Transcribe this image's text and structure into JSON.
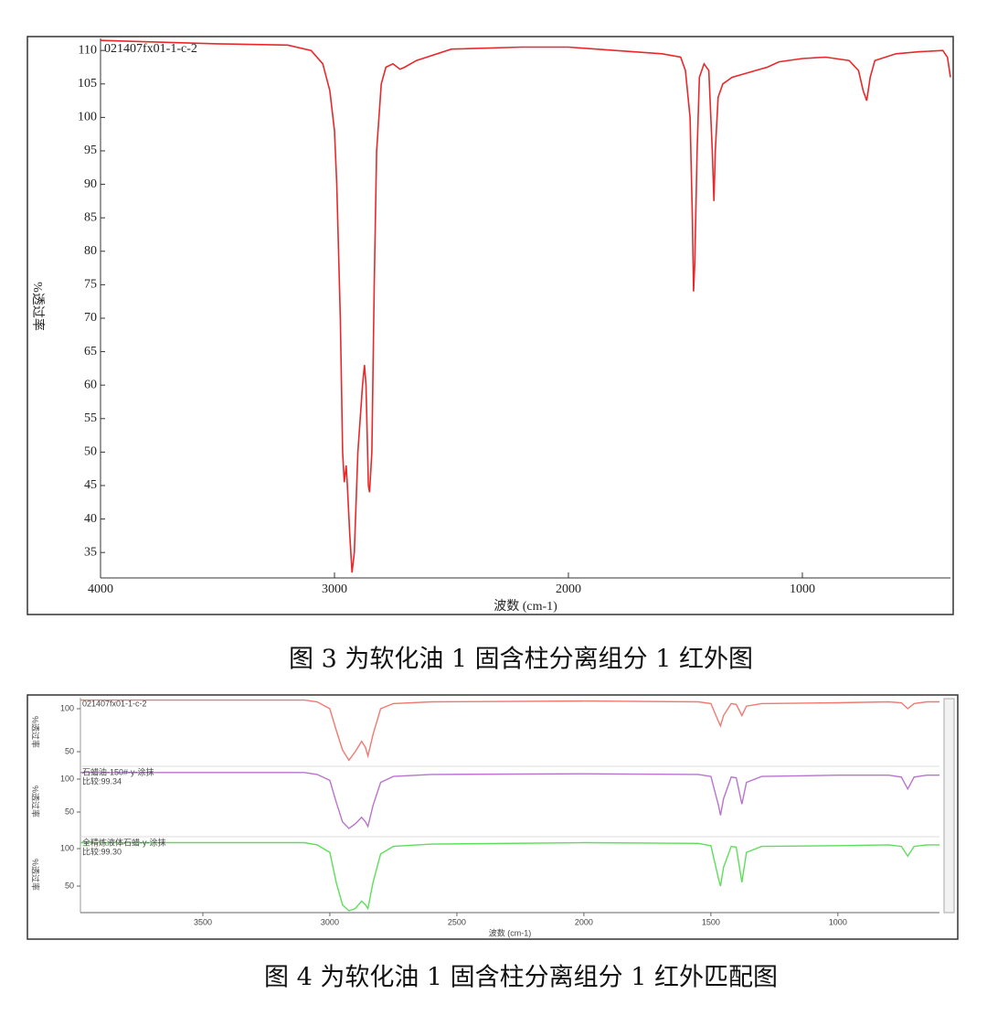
{
  "chart_data": [
    {
      "type": "line",
      "caption": "图 3 为软化油 1 固含柱分离组分 1 红外图",
      "xlabel": "波数 (cm-1)",
      "ylabel": "%透过率",
      "xlim": [
        4000,
        367
      ],
      "ylim": [
        31.2,
        111.8
      ],
      "xticks": [
        4000,
        3000,
        2000,
        1000
      ],
      "yticks": [
        35,
        40,
        45,
        50,
        55,
        60,
        65,
        70,
        75,
        80,
        85,
        90,
        95,
        100,
        105,
        110
      ],
      "x": [
        4000,
        3500,
        3200,
        3100,
        3050,
        3020,
        3000,
        2990,
        2975,
        2965,
        2958,
        2950,
        2945,
        2935,
        2925,
        2915,
        2900,
        2880,
        2872,
        2865,
        2855,
        2850,
        2840,
        2830,
        2820,
        2800,
        2780,
        2750,
        2720,
        2700,
        2650,
        2500,
        2200,
        2000,
        1800,
        1600,
        1520,
        1500,
        1480,
        1470,
        1465,
        1460,
        1450,
        1440,
        1420,
        1400,
        1385,
        1378,
        1372,
        1360,
        1340,
        1300,
        1200,
        1150,
        1100,
        1000,
        900,
        800,
        760,
        740,
        725,
        710,
        690,
        600,
        500,
        400,
        380,
        367
      ],
      "series": [
        {
          "name": "021407fx01-1-c-2",
          "color": "#e8282a",
          "values": [
            111.5,
            111,
            110.8,
            110,
            108,
            104,
            98,
            90,
            70,
            50,
            45.5,
            48,
            45,
            38,
            32,
            35,
            50,
            60,
            63,
            60,
            45,
            44,
            50,
            75,
            95,
            105,
            107.5,
            108,
            107.2,
            107.5,
            108.5,
            110.2,
            110.5,
            110.5,
            110,
            109.5,
            109,
            107,
            100,
            85,
            74,
            78,
            95,
            106,
            108,
            107,
            95,
            87.5,
            95,
            103,
            105,
            106,
            107,
            107.5,
            108.3,
            108.8,
            109,
            108.5,
            107,
            104,
            102.5,
            106,
            108.5,
            109.5,
            109.8,
            110,
            109,
            106
          ]
        }
      ]
    },
    {
      "type": "stacked_line",
      "caption": "图 4 为软化油 1 固含柱分离组分 1 红外匹配图",
      "xlabel": "波数 (cm-1)",
      "ylabel": "%透过率",
      "xlim": [
        3982,
        600
      ],
      "xticks": [
        3500,
        3000,
        2500,
        2000,
        1500,
        1000
      ],
      "x": [
        3982,
        3100,
        3050,
        3000,
        2975,
        2950,
        2925,
        2900,
        2875,
        2860,
        2850,
        2830,
        2800,
        2750,
        2600,
        2000,
        1550,
        1500,
        1470,
        1462,
        1450,
        1420,
        1400,
        1378,
        1360,
        1300,
        1000,
        800,
        750,
        725,
        700,
        650,
        600
      ],
      "series": [
        {
          "name": "021407fx01-1-c-2",
          "color": "#f07a72",
          "ylim": [
            33,
            112.8
          ],
          "yticks": [
            50,
            100
          ],
          "values": [
            110,
            110,
            108,
            100,
            75,
            52,
            40,
            50,
            62,
            55,
            45,
            70,
            100,
            106,
            108,
            109,
            108,
            106,
            85,
            80,
            92,
            106,
            105,
            92,
            103,
            106,
            107,
            108,
            107,
            100,
            106,
            108,
            108
          ]
        },
        {
          "name": "石蜡油-150#-y-涂抹",
          "note": "比较:99.34",
          "color": "#b874cc",
          "ylim": [
            12.5,
            119.4
          ],
          "yticks": [
            50,
            100
          ],
          "values": [
            110,
            110,
            107,
            98,
            65,
            35,
            25,
            32,
            42,
            35,
            28,
            60,
            95,
            104,
            107,
            108,
            107,
            104,
            60,
            45,
            70,
            103,
            102,
            62,
            95,
            104,
            106,
            106,
            103,
            85,
            103,
            106,
            106
          ]
        },
        {
          "name": "全精炼液体石蜡-y-涂抹",
          "note": "比较:99.30",
          "color": "#5ede5a",
          "ylim": [
            14.6,
            115.9
          ],
          "yticks": [
            50,
            100
          ],
          "values": [
            108,
            108,
            105,
            95,
            55,
            25,
            17,
            20,
            30,
            25,
            20,
            55,
            93,
            103,
            106,
            108,
            107,
            104,
            60,
            50,
            75,
            103,
            102,
            55,
            95,
            103,
            104,
            105,
            103,
            90,
            103,
            105,
            105
          ]
        }
      ]
    }
  ]
}
